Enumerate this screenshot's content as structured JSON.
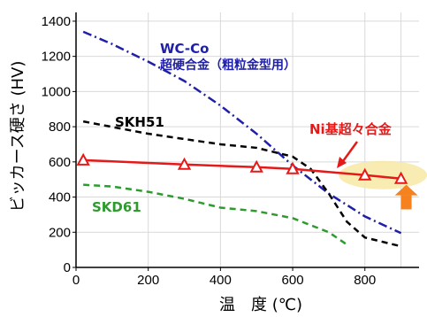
{
  "chart_data": {
    "type": "line",
    "xlabel": "温　度 (℃)",
    "ylabel": "ビッカース硬さ (HV)",
    "xlim": [
      0,
      950
    ],
    "ylim": [
      0,
      1450
    ],
    "x_ticks": [
      0,
      200,
      400,
      600,
      800
    ],
    "y_ticks": [
      0,
      200,
      400,
      600,
      800,
      1000,
      1200,
      1400
    ],
    "grid": true,
    "series": [
      {
        "name": "WC-Co",
        "name_line2": "超硬合金（粗粒金型用）",
        "color": "#1f1fa8",
        "dash": "dashdot",
        "x": [
          20,
          100,
          200,
          300,
          400,
          500,
          600,
          700,
          800,
          900
        ],
        "y": [
          1340,
          1270,
          1170,
          1060,
          920,
          760,
          580,
          420,
          290,
          195
        ]
      },
      {
        "name": "SKH51",
        "color": "#000000",
        "dash": "dash",
        "x": [
          20,
          200,
          400,
          500,
          600,
          650,
          700,
          750,
          800,
          900
        ],
        "y": [
          830,
          760,
          700,
          680,
          630,
          560,
          420,
          260,
          170,
          120
        ]
      },
      {
        "name": "SKD61",
        "color": "#2e9b2e",
        "dash": "dash",
        "x": [
          20,
          100,
          200,
          300,
          400,
          500,
          600,
          700,
          750
        ],
        "y": [
          470,
          460,
          430,
          390,
          340,
          320,
          280,
          200,
          130
        ]
      },
      {
        "name": "Ni基超々合金",
        "color": "#e61919",
        "dash": "solid",
        "marker": "triangle",
        "x": [
          20,
          300,
          500,
          600,
          800,
          900
        ],
        "y": [
          610,
          585,
          570,
          560,
          525,
          505
        ]
      }
    ],
    "highlight": {
      "center_x": 850,
      "center_y": 525,
      "color": "#f7e9a6",
      "arrow_color": "#f5821f"
    }
  }
}
